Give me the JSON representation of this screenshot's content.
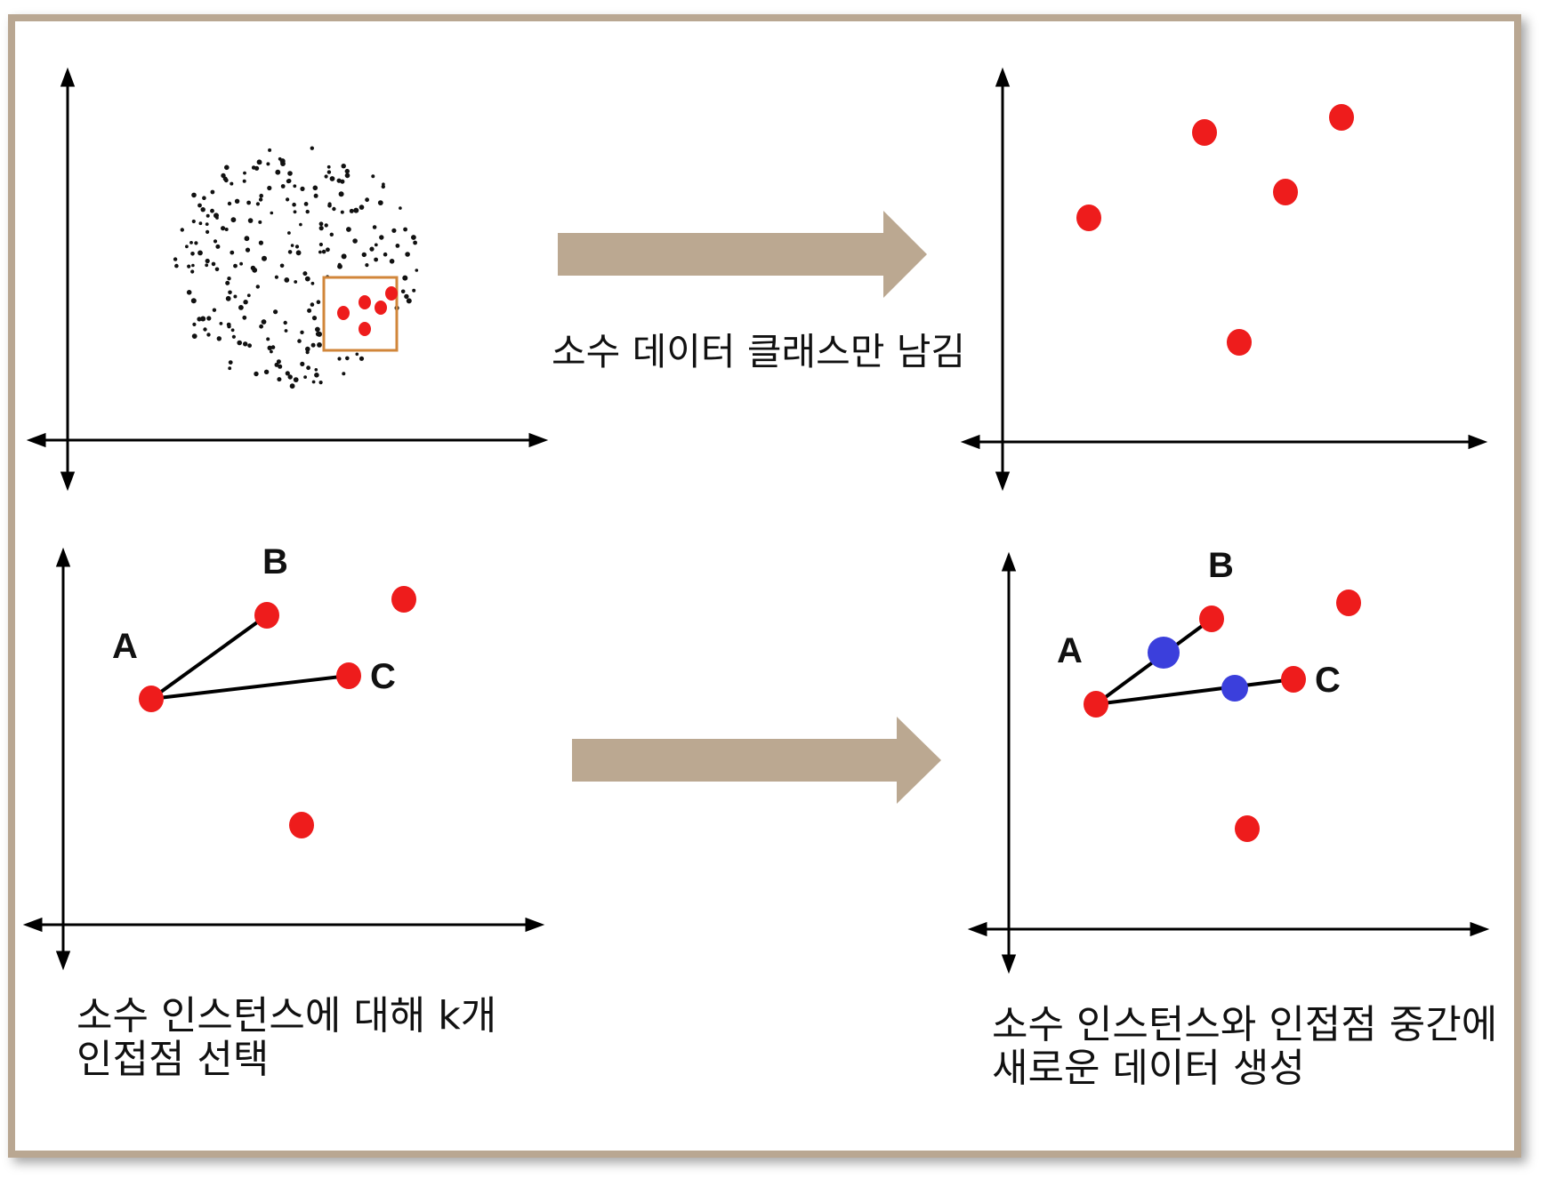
{
  "colors": {
    "frame": "#b9a792",
    "arrow": "#bba891",
    "minority": "#ee1c1c",
    "majority": "#111111",
    "synthetic": "#3b3fdc",
    "highlight_box": "#d1863a"
  },
  "captions": {
    "keep_minority": "소수 데이터 클래스만 남김",
    "knn_line1": "소수 인스턴스에 대해 k개",
    "knn_line2": "인접점 선택",
    "synth_line1": "소수 인스턴스와 인접점 중간에",
    "synth_line2": "새로운 데이터 생성"
  },
  "point_labels": {
    "a": "A",
    "b": "B",
    "c": "C"
  }
}
